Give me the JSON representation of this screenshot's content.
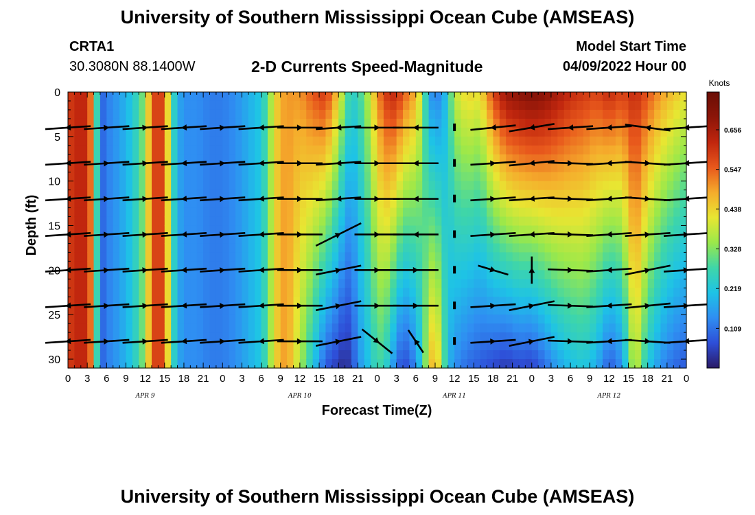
{
  "header": {
    "title": "University of Southern Mississippi Ocean Cube (AMSEAS)",
    "station_id": "CRTA1",
    "coords": "30.3080N  88.1400W",
    "chart_title": "2-D Currents Speed-Magnitude",
    "model_start_label": "Model Start Time",
    "model_start_value": "04/09/2022 Hour 00"
  },
  "footer": {
    "title": "University of Southern Mississippi Ocean Cube (AMSEAS)"
  },
  "colors": {
    "scale": [
      "#2a1a66",
      "#2e4fd8",
      "#2f8ef2",
      "#1ec3e6",
      "#3fd6a8",
      "#9be84a",
      "#e8e632",
      "#f5ac2c",
      "#e8581c",
      "#c0260e",
      "#8c1508",
      "#6a0e05"
    ],
    "arrow": "#000000"
  },
  "chart_data": {
    "type": "heatmap",
    "title": "2-D Currents Speed-Magnitude",
    "xlabel": "Forecast Time(Z)",
    "ylabel": "Depth (ft)",
    "xlim": [
      0,
      96
    ],
    "ylim": [
      31,
      0
    ],
    "x_ticks": [
      0,
      3,
      6,
      9,
      12,
      15,
      18,
      21,
      24,
      27,
      30,
      33,
      36,
      39,
      42,
      45,
      48,
      51,
      54,
      57,
      60,
      63,
      66,
      69,
      72,
      75,
      78,
      81,
      84,
      87,
      90,
      93,
      96
    ],
    "x_tick_labels": [
      "0",
      "3",
      "6",
      "9",
      "12",
      "15",
      "18",
      "21",
      "0",
      "3",
      "6",
      "9",
      "12",
      "15",
      "18",
      "21",
      "0",
      "3",
      "6",
      "9",
      "12",
      "15",
      "18",
      "21",
      "0",
      "3",
      "6",
      "9",
      "12",
      "15",
      "18",
      "21",
      "0"
    ],
    "day_labels": [
      {
        "hour": 12,
        "label": "APR 9"
      },
      {
        "hour": 36,
        "label": "APR 10"
      },
      {
        "hour": 60,
        "label": "APR 11"
      },
      {
        "hour": 84,
        "label": "APR 12"
      }
    ],
    "y_ticks": [
      0,
      5,
      10,
      15,
      20,
      25,
      30
    ],
    "colorbar": {
      "label": "Knots",
      "vmin": 0,
      "vmax": 0.76,
      "ticks": [
        0.109,
        0.219,
        0.328,
        0.438,
        0.547,
        0.656
      ]
    },
    "depth_levels": [
      4,
      8,
      12,
      16,
      20,
      24,
      28
    ],
    "speed_profile": {
      "hours": [
        0,
        1,
        3,
        4,
        5,
        6,
        8,
        10,
        12,
        13,
        14,
        15,
        16,
        17,
        18,
        20,
        22,
        24,
        26,
        28,
        30,
        31,
        32,
        33,
        34,
        36,
        38,
        40,
        42,
        43,
        44,
        45,
        46,
        47,
        48,
        49,
        50,
        51,
        52,
        53,
        54,
        55,
        56,
        57,
        58,
        59,
        60,
        62,
        64,
        66,
        68,
        70,
        72,
        74,
        76,
        78,
        80,
        82,
        84,
        86,
        88,
        90,
        92,
        94,
        96
      ],
      "surface": [
        0.58,
        0.62,
        0.62,
        0.45,
        0.08,
        0.12,
        0.16,
        0.22,
        0.34,
        0.56,
        0.6,
        0.56,
        0.3,
        0.18,
        0.14,
        0.14,
        0.12,
        0.12,
        0.14,
        0.18,
        0.22,
        0.3,
        0.42,
        0.48,
        0.5,
        0.5,
        0.56,
        0.6,
        0.45,
        0.32,
        0.24,
        0.26,
        0.32,
        0.4,
        0.5,
        0.58,
        0.62,
        0.62,
        0.56,
        0.52,
        0.48,
        0.36,
        0.16,
        0.12,
        0.14,
        0.24,
        0.38,
        0.44,
        0.42,
        0.58,
        0.68,
        0.7,
        0.72,
        0.7,
        0.66,
        0.62,
        0.6,
        0.58,
        0.62,
        0.58,
        0.62,
        0.56,
        0.5,
        0.46,
        0.42
      ],
      "bottom": [
        0.58,
        0.62,
        0.62,
        0.45,
        0.08,
        0.12,
        0.16,
        0.22,
        0.34,
        0.56,
        0.6,
        0.56,
        0.3,
        0.18,
        0.14,
        0.14,
        0.12,
        0.12,
        0.14,
        0.18,
        0.22,
        0.3,
        0.42,
        0.48,
        0.5,
        0.36,
        0.22,
        0.08,
        0.04,
        0.02,
        0.05,
        0.14,
        0.18,
        0.22,
        0.28,
        0.26,
        0.2,
        0.1,
        0.06,
        0.08,
        0.14,
        0.24,
        0.42,
        0.5,
        0.36,
        0.2,
        0.14,
        0.1,
        0.08,
        0.06,
        0.04,
        0.06,
        0.05,
        0.1,
        0.16,
        0.2,
        0.22,
        0.18,
        0.08,
        0.14,
        0.4,
        0.22,
        0.14,
        0.1,
        0.08
      ]
    },
    "vector_hours": [
      0,
      6,
      12,
      18,
      24,
      30,
      36,
      42,
      48,
      54,
      60,
      66,
      72,
      78,
      84,
      90,
      96
    ],
    "vector_rows": [
      [
        [
          -3,
          0.2
        ],
        [
          3,
          -0.2
        ],
        [
          3,
          -0.2
        ],
        [
          -3,
          0.2
        ],
        [
          3,
          -0.2
        ],
        [
          -3,
          0.2
        ],
        [
          3,
          0.0
        ],
        [
          -3,
          0.2
        ],
        [
          3,
          0.0
        ],
        [
          -3,
          0.0
        ],
        [
          0,
          0
        ],
        [
          -3,
          0.3
        ],
        [
          -3,
          0.5
        ],
        [
          -3,
          0.2
        ],
        [
          -3,
          0.2
        ],
        [
          -3,
          -0.4
        ],
        [
          -3,
          0.2
        ]
      ],
      [
        [
          -3,
          0.2
        ],
        [
          3,
          -0.2
        ],
        [
          3,
          -0.2
        ],
        [
          -3,
          0.2
        ],
        [
          3,
          -0.2
        ],
        [
          -3,
          0.2
        ],
        [
          3,
          0.0
        ],
        [
          -3,
          0.2
        ],
        [
          3,
          0.0
        ],
        [
          -3,
          0.0
        ],
        [
          0,
          0
        ],
        [
          3,
          -0.2
        ],
        [
          -3,
          0.3
        ],
        [
          3,
          0.1
        ],
        [
          -3,
          0.2
        ],
        [
          3,
          0.2
        ],
        [
          -3,
          0.2
        ]
      ],
      [
        [
          -3,
          0.2
        ],
        [
          3,
          -0.2
        ],
        [
          3,
          -0.2
        ],
        [
          -3,
          0.2
        ],
        [
          3,
          -0.2
        ],
        [
          -3,
          0.2
        ],
        [
          3,
          0.0
        ],
        [
          -3,
          0.2
        ],
        [
          3,
          0.0
        ],
        [
          -3,
          0.0
        ],
        [
          0,
          0
        ],
        [
          3,
          -0.2
        ],
        [
          -3,
          0.2
        ],
        [
          3,
          0.1
        ],
        [
          -3,
          0.2
        ],
        [
          3,
          0.2
        ],
        [
          -3,
          0.2
        ]
      ],
      [
        [
          -3,
          0.2
        ],
        [
          3,
          -0.2
        ],
        [
          3,
          -0.2
        ],
        [
          -3,
          0.2
        ],
        [
          3,
          -0.2
        ],
        [
          -3,
          0.2
        ],
        [
          3,
          0.0
        ],
        [
          3,
          -1.5
        ],
        [
          3,
          0.0
        ],
        [
          -3,
          0.0
        ],
        [
          0,
          0
        ],
        [
          3,
          -0.2
        ],
        [
          -3,
          0.2
        ],
        [
          3,
          0.1
        ],
        [
          -3,
          0.2
        ],
        [
          3,
          -0.2
        ],
        [
          3,
          -0.2
        ]
      ],
      [
        [
          -3,
          0.2
        ],
        [
          3,
          -0.2
        ],
        [
          3,
          -0.2
        ],
        [
          -3,
          0.2
        ],
        [
          3,
          -0.2
        ],
        [
          -3,
          0.2
        ],
        [
          3,
          0.0
        ],
        [
          3,
          -0.6
        ],
        [
          3,
          0.0
        ],
        [
          3,
          0.0
        ],
        [
          0,
          0
        ],
        [
          2,
          0.6
        ],
        [
          0,
          -1.8
        ],
        [
          3,
          0.1
        ],
        [
          -3,
          0.2
        ],
        [
          3,
          -0.6
        ],
        [
          3,
          -0.2
        ]
      ],
      [
        [
          -3,
          0.2
        ],
        [
          3,
          -0.2
        ],
        [
          3,
          -0.2
        ],
        [
          -3,
          0.2
        ],
        [
          3,
          -0.2
        ],
        [
          -3,
          0.2
        ],
        [
          3,
          0.0
        ],
        [
          3,
          -0.6
        ],
        [
          3,
          0.0
        ],
        [
          3,
          0.0
        ],
        [
          0,
          0
        ],
        [
          3,
          -0.2
        ],
        [
          3,
          -0.6
        ],
        [
          3,
          0.1
        ],
        [
          -3,
          0.2
        ],
        [
          3,
          -0.3
        ],
        [
          3,
          -0.2
        ]
      ],
      [
        [
          -3,
          0.2
        ],
        [
          3,
          -0.2
        ],
        [
          3,
          -0.2
        ],
        [
          -3,
          0.2
        ],
        [
          3,
          -0.2
        ],
        [
          -3,
          0.2
        ],
        [
          3,
          0.0
        ],
        [
          3,
          -0.6
        ],
        [
          2,
          1.6
        ],
        [
          -1,
          -1.5
        ],
        [
          0,
          0
        ],
        [
          3,
          -0.2
        ],
        [
          3,
          -0.6
        ],
        [
          3,
          0.1
        ],
        [
          -3,
          0.2
        ],
        [
          3,
          0.2
        ],
        [
          -3,
          0.2
        ]
      ]
    ]
  }
}
